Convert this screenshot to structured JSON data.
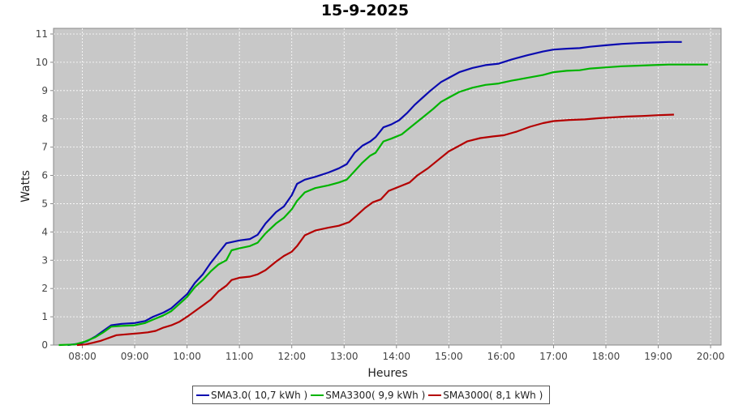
{
  "chart_data": {
    "type": "line",
    "title": "15-9-2025",
    "xlabel": "Heures",
    "ylabel": "Watts",
    "xlim": [
      7.45,
      20.2
    ],
    "ylim": [
      0,
      11.2
    ],
    "x_ticks": [
      "08:00",
      "09:00",
      "10:00",
      "11:00",
      "12:00",
      "13:00",
      "14:00",
      "15:00",
      "16:00",
      "17:00",
      "18:00",
      "19:00",
      "20:00"
    ],
    "y_ticks": [
      "0",
      "1",
      "2",
      "3",
      "4",
      "5",
      "6",
      "7",
      "8",
      "9",
      "10",
      "11"
    ],
    "grid": true,
    "legend_position": "bottom",
    "series": [
      {
        "name": "SMA3.0( 10,7 kWh )",
        "color": "#0a0ab0",
        "points": [
          [
            7.72,
            0
          ],
          [
            7.95,
            0.05
          ],
          [
            8.1,
            0.15
          ],
          [
            8.25,
            0.3
          ],
          [
            8.4,
            0.5
          ],
          [
            8.55,
            0.7
          ],
          [
            8.75,
            0.75
          ],
          [
            9.0,
            0.78
          ],
          [
            9.2,
            0.85
          ],
          [
            9.35,
            1.0
          ],
          [
            9.55,
            1.15
          ],
          [
            9.7,
            1.3
          ],
          [
            9.85,
            1.55
          ],
          [
            10.0,
            1.8
          ],
          [
            10.15,
            2.2
          ],
          [
            10.3,
            2.5
          ],
          [
            10.45,
            2.9
          ],
          [
            10.6,
            3.25
          ],
          [
            10.75,
            3.6
          ],
          [
            11.0,
            3.7
          ],
          [
            11.2,
            3.75
          ],
          [
            11.35,
            3.9
          ],
          [
            11.5,
            4.3
          ],
          [
            11.7,
            4.7
          ],
          [
            11.85,
            4.9
          ],
          [
            12.0,
            5.3
          ],
          [
            12.1,
            5.7
          ],
          [
            12.25,
            5.85
          ],
          [
            12.45,
            5.95
          ],
          [
            12.7,
            6.1
          ],
          [
            12.9,
            6.25
          ],
          [
            13.05,
            6.4
          ],
          [
            13.2,
            6.8
          ],
          [
            13.35,
            7.05
          ],
          [
            13.5,
            7.2
          ],
          [
            13.6,
            7.35
          ],
          [
            13.75,
            7.7
          ],
          [
            13.9,
            7.8
          ],
          [
            14.05,
            7.95
          ],
          [
            14.2,
            8.2
          ],
          [
            14.35,
            8.5
          ],
          [
            14.5,
            8.75
          ],
          [
            14.65,
            9.0
          ],
          [
            14.85,
            9.3
          ],
          [
            15.0,
            9.45
          ],
          [
            15.2,
            9.65
          ],
          [
            15.45,
            9.8
          ],
          [
            15.7,
            9.9
          ],
          [
            15.95,
            9.95
          ],
          [
            16.2,
            10.1
          ],
          [
            16.5,
            10.25
          ],
          [
            16.8,
            10.38
          ],
          [
            17.0,
            10.45
          ],
          [
            17.25,
            10.48
          ],
          [
            17.5,
            10.5
          ],
          [
            17.7,
            10.55
          ],
          [
            18.0,
            10.6
          ],
          [
            18.3,
            10.65
          ],
          [
            18.6,
            10.68
          ],
          [
            18.9,
            10.7
          ],
          [
            19.2,
            10.72
          ],
          [
            19.45,
            10.72
          ]
        ]
      },
      {
        "name": "SMA3300( 9,9 kWh )",
        "color": "#00b400",
        "points": [
          [
            7.55,
            0
          ],
          [
            7.85,
            0.02
          ],
          [
            8.05,
            0.12
          ],
          [
            8.25,
            0.28
          ],
          [
            8.4,
            0.45
          ],
          [
            8.55,
            0.65
          ],
          [
            8.75,
            0.68
          ],
          [
            9.0,
            0.7
          ],
          [
            9.2,
            0.78
          ],
          [
            9.35,
            0.9
          ],
          [
            9.55,
            1.05
          ],
          [
            9.7,
            1.2
          ],
          [
            9.85,
            1.45
          ],
          [
            10.0,
            1.7
          ],
          [
            10.15,
            2.05
          ],
          [
            10.3,
            2.3
          ],
          [
            10.45,
            2.6
          ],
          [
            10.6,
            2.85
          ],
          [
            10.75,
            3.0
          ],
          [
            10.85,
            3.35
          ],
          [
            11.0,
            3.42
          ],
          [
            11.2,
            3.5
          ],
          [
            11.35,
            3.62
          ],
          [
            11.5,
            3.95
          ],
          [
            11.7,
            4.3
          ],
          [
            11.85,
            4.5
          ],
          [
            12.0,
            4.8
          ],
          [
            12.1,
            5.1
          ],
          [
            12.25,
            5.4
          ],
          [
            12.45,
            5.55
          ],
          [
            12.7,
            5.65
          ],
          [
            12.9,
            5.75
          ],
          [
            13.05,
            5.85
          ],
          [
            13.2,
            6.15
          ],
          [
            13.35,
            6.45
          ],
          [
            13.5,
            6.7
          ],
          [
            13.6,
            6.8
          ],
          [
            13.75,
            7.2
          ],
          [
            13.9,
            7.3
          ],
          [
            14.1,
            7.45
          ],
          [
            14.3,
            7.75
          ],
          [
            14.5,
            8.05
          ],
          [
            14.7,
            8.35
          ],
          [
            14.85,
            8.6
          ],
          [
            15.0,
            8.75
          ],
          [
            15.2,
            8.95
          ],
          [
            15.45,
            9.1
          ],
          [
            15.7,
            9.2
          ],
          [
            15.95,
            9.25
          ],
          [
            16.2,
            9.35
          ],
          [
            16.5,
            9.45
          ],
          [
            16.8,
            9.55
          ],
          [
            17.0,
            9.65
          ],
          [
            17.25,
            9.7
          ],
          [
            17.5,
            9.72
          ],
          [
            17.7,
            9.78
          ],
          [
            18.0,
            9.82
          ],
          [
            18.3,
            9.86
          ],
          [
            18.6,
            9.88
          ],
          [
            18.9,
            9.9
          ],
          [
            19.2,
            9.92
          ],
          [
            19.6,
            9.92
          ],
          [
            19.95,
            9.92
          ]
        ]
      },
      {
        "name": "SMA3000( 8,1 kWh )",
        "color": "#b40000",
        "points": [
          [
            7.9,
            0
          ],
          [
            8.05,
            0.02
          ],
          [
            8.2,
            0.08
          ],
          [
            8.35,
            0.15
          ],
          [
            8.5,
            0.25
          ],
          [
            8.65,
            0.35
          ],
          [
            8.85,
            0.38
          ],
          [
            9.1,
            0.42
          ],
          [
            9.25,
            0.45
          ],
          [
            9.4,
            0.5
          ],
          [
            9.55,
            0.62
          ],
          [
            9.7,
            0.7
          ],
          [
            9.85,
            0.82
          ],
          [
            10.0,
            1.0
          ],
          [
            10.15,
            1.2
          ],
          [
            10.3,
            1.4
          ],
          [
            10.45,
            1.6
          ],
          [
            10.6,
            1.9
          ],
          [
            10.75,
            2.1
          ],
          [
            10.85,
            2.3
          ],
          [
            11.0,
            2.38
          ],
          [
            11.2,
            2.42
          ],
          [
            11.35,
            2.5
          ],
          [
            11.5,
            2.65
          ],
          [
            11.7,
            2.95
          ],
          [
            11.85,
            3.15
          ],
          [
            12.0,
            3.3
          ],
          [
            12.1,
            3.5
          ],
          [
            12.25,
            3.88
          ],
          [
            12.45,
            4.05
          ],
          [
            12.7,
            4.15
          ],
          [
            12.9,
            4.22
          ],
          [
            13.1,
            4.35
          ],
          [
            13.25,
            4.6
          ],
          [
            13.4,
            4.85
          ],
          [
            13.55,
            5.05
          ],
          [
            13.7,
            5.15
          ],
          [
            13.85,
            5.45
          ],
          [
            14.05,
            5.6
          ],
          [
            14.25,
            5.75
          ],
          [
            14.4,
            6.0
          ],
          [
            14.6,
            6.25
          ],
          [
            14.8,
            6.55
          ],
          [
            15.0,
            6.85
          ],
          [
            15.2,
            7.05
          ],
          [
            15.35,
            7.2
          ],
          [
            15.6,
            7.32
          ],
          [
            15.85,
            7.38
          ],
          [
            16.05,
            7.42
          ],
          [
            16.3,
            7.55
          ],
          [
            16.55,
            7.72
          ],
          [
            16.8,
            7.85
          ],
          [
            17.0,
            7.92
          ],
          [
            17.3,
            7.96
          ],
          [
            17.6,
            7.98
          ],
          [
            17.85,
            8.02
          ],
          [
            18.1,
            8.05
          ],
          [
            18.4,
            8.08
          ],
          [
            18.7,
            8.1
          ],
          [
            19.0,
            8.13
          ],
          [
            19.3,
            8.15
          ]
        ]
      }
    ]
  }
}
